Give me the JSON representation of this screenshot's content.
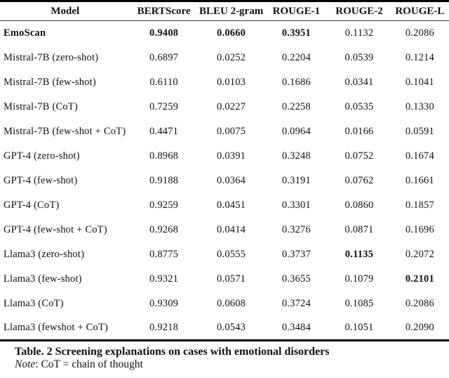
{
  "table": {
    "columns": [
      "Model",
      "BERTScore",
      "BLEU 2-gram",
      "ROUGE-1",
      "ROUGE-2",
      "ROUGE-L"
    ],
    "rows": [
      {
        "cells": [
          "EmoScan",
          "0.9408",
          "0.0660",
          "0.3951",
          "0.1132",
          "0.2086"
        ]
      },
      {
        "cells": [
          "Mistral-7B (zero-shot)",
          "0.6897",
          "0.0252",
          "0.2204",
          "0.0539",
          "0.1214"
        ]
      },
      {
        "cells": [
          "Mistral-7B (few-shot)",
          "0.6110",
          "0.0103",
          "0.1686",
          "0.0341",
          "0.1041"
        ]
      },
      {
        "cells": [
          "Mistral-7B (CoT)",
          "0.7259",
          "0.0227",
          "0.2258",
          "0.0535",
          "0.1330"
        ]
      },
      {
        "cells": [
          "Mistral-7B (few-shot + CoT)",
          "0.4471",
          "0.0075",
          "0.0964",
          "0.0166",
          "0.0591"
        ]
      },
      {
        "cells": [
          "GPT-4 (zero-shot)",
          "0.8968",
          "0.0391",
          "0.3248",
          "0.0752",
          "0.1674"
        ]
      },
      {
        "cells": [
          "GPT-4 (few-shot)",
          "0.9188",
          "0.0364",
          "0.3191",
          "0.0762",
          "0.1661"
        ]
      },
      {
        "cells": [
          "GPT-4 (CoT)",
          "0.9259",
          "0.0451",
          "0.3301",
          "0.0860",
          "0.1857"
        ]
      },
      {
        "cells": [
          "GPT-4 (few-shot + CoT)",
          "0.9268",
          "0.0414",
          "0.3276",
          "0.0871",
          "0.1696"
        ]
      },
      {
        "cells": [
          "Llama3 (zero-shot)",
          "0.8775",
          "0.0555",
          "0.3737",
          "0.1135",
          "0.2072"
        ]
      },
      {
        "cells": [
          "Llama3 (few-shot)",
          "0.9321",
          "0.0571",
          "0.3655",
          "0.1079",
          "0.2101"
        ]
      },
      {
        "cells": [
          "Llama3 (CoT)",
          "0.9309",
          "0.0608",
          "0.3724",
          "0.1085",
          "0.2086"
        ]
      },
      {
        "cells": [
          "Llama3 (fewshot + CoT)",
          "0.9218",
          "0.0543",
          "0.3484",
          "0.1051",
          "0.2090"
        ]
      }
    ]
  },
  "caption": {
    "title": "Table. 2 Screening explanations on cases with emotional disorders",
    "note_label": "Note",
    "note_rest": ": CoT = chain of thought"
  }
}
